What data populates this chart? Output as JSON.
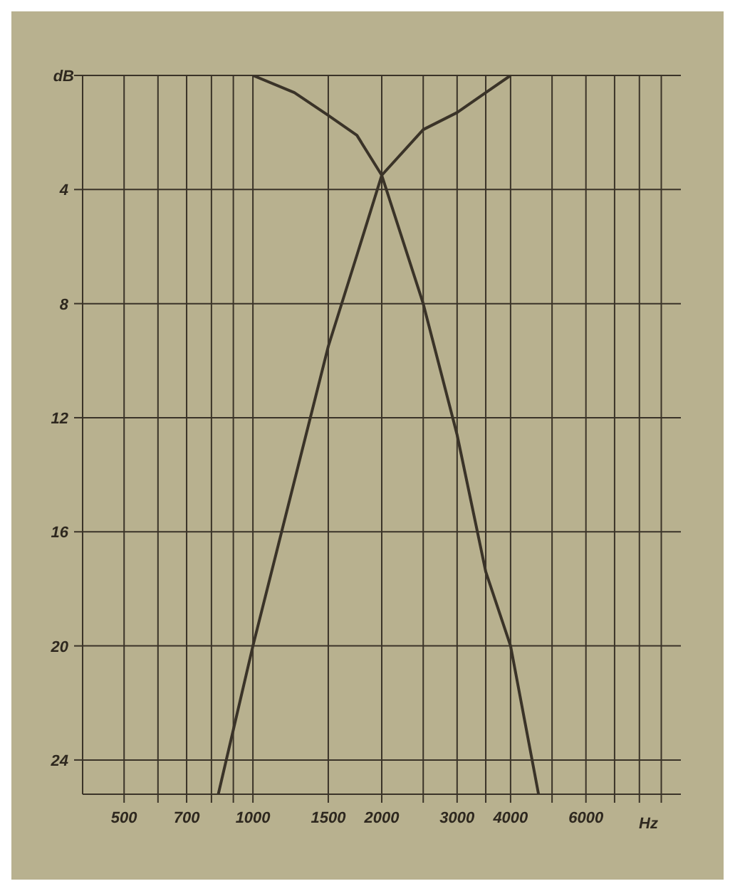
{
  "chart_data": {
    "type": "line",
    "xlabel": "Hz",
    "ylabel": "dB",
    "log": "x",
    "xlim": [
      400,
      10000
    ],
    "xticks": [
      500,
      {
        "value": 600,
        "label": null
      },
      700,
      {
        "value": 800,
        "label": null
      },
      {
        "value": 900,
        "label": null
      },
      1000,
      1500,
      2000,
      {
        "value": 2500,
        "label": null
      },
      3000,
      {
        "value": 3500,
        "label": null
      },
      4000,
      {
        "value": 5000,
        "label": null
      },
      6000,
      {
        "value": 7000,
        "label": null
      },
      {
        "value": 8000,
        "label": null
      },
      {
        "value": 9000,
        "label": null
      }
    ],
    "ylim": [
      25.2,
      0
    ],
    "yticks": [
      {
        "value": 0,
        "label": null
      },
      4,
      8,
      12,
      16,
      20,
      24
    ],
    "grid": true,
    "marker": "none",
    "line_style": "solid",
    "series": [
      {
        "color": "#3a3328",
        "x": [
          1000,
          1250,
          1500,
          1750,
          2000,
          2500,
          3000,
          3500,
          4000,
          4650
        ],
        "values": [
          0,
          0.6,
          1.4,
          2.1,
          3.5,
          8,
          12.6,
          17.4,
          20,
          25.2
        ]
      },
      {
        "color": "#3a3328",
        "x": [
          830,
          1000,
          1500,
          1750,
          2000,
          2500,
          3000,
          3500,
          4000
        ],
        "values": [
          25.2,
          20,
          9.5,
          6.3,
          3.5,
          1.9,
          1.3,
          0.6,
          0
        ]
      }
    ]
  }
}
